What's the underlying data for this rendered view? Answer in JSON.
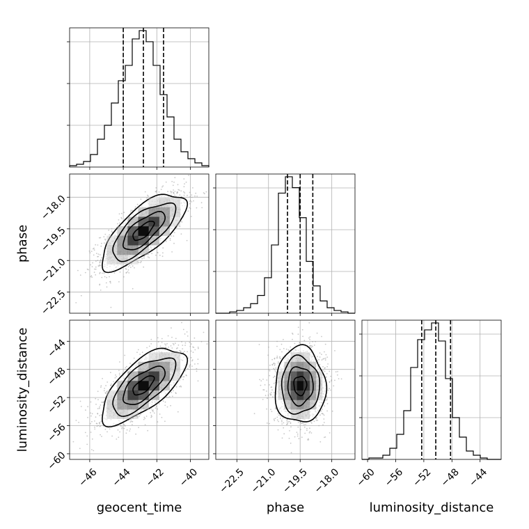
{
  "chart_data": {
    "type": "corner",
    "parameters": [
      "geocent_time",
      "phase",
      "luminosity_distance"
    ],
    "ranges": {
      "geocent_time": [
        -47.2,
        -38.9
      ],
      "phase": [
        -23.5,
        -16.9
      ],
      "luminosity_distance": [
        -60.8,
        -41.0
      ]
    },
    "ticks": {
      "geocent_time": {
        "values": [
          -46,
          -44,
          -42,
          -40
        ],
        "labels": [
          "−46",
          "−44",
          "−42",
          "−40"
        ]
      },
      "phase": {
        "values": [
          -22.5,
          -21.0,
          -19.5,
          -18.0
        ],
        "labels": [
          "−22.5",
          "−21.0",
          "−19.5",
          "−18.0"
        ]
      },
      "luminosity_distance": {
        "values": [
          -60,
          -56,
          -52,
          -48,
          -44
        ],
        "labels": [
          "−60",
          "−56",
          "−52",
          "−48",
          "−44"
        ]
      }
    },
    "grid": true,
    "histograms": {
      "geocent_time": {
        "bin_start": -47.2,
        "bin_width": 0.415,
        "counts": [
          1,
          2,
          4,
          9,
          20,
          30,
          46,
          62,
          73,
          92,
          98,
          90,
          73,
          52,
          36,
          20,
          11,
          6,
          3,
          1
        ],
        "quantiles": [
          -44.0,
          -42.8,
          -41.6
        ]
      },
      "phase": {
        "bin_start": -23.5,
        "bin_width": 0.33,
        "counts": [
          0,
          0,
          1,
          2,
          4,
          7,
          13,
          26,
          50,
          88,
          100,
          92,
          70,
          38,
          20,
          9,
          4,
          2,
          1,
          0
        ],
        "quantiles": [
          -20.1,
          -19.5,
          -18.9
        ]
      },
      "luminosity_distance": {
        "bin_start": -60.8,
        "bin_width": 0.99,
        "counts": [
          0,
          1,
          1,
          3,
          8,
          18,
          35,
          66,
          86,
          93,
          98,
          85,
          58,
          30,
          16,
          6,
          3,
          1,
          0,
          0
        ],
        "quantiles": [
          -52.3,
          -50.3,
          -48.2
        ]
      }
    },
    "densities": [
      {
        "x": "geocent_time",
        "y": "phase",
        "mean": [
          -42.8,
          -19.6
        ],
        "sd": [
          1.25,
          0.9
        ],
        "rho": 0.72
      },
      {
        "x": "geocent_time",
        "y": "luminosity_distance",
        "mean": [
          -42.8,
          -50.3
        ],
        "sd": [
          1.25,
          2.7
        ],
        "rho": 0.68
      },
      {
        "x": "phase",
        "y": "luminosity_distance",
        "mean": [
          -19.5,
          -50.3
        ],
        "sd": [
          0.6,
          2.7
        ],
        "rho": 0.0
      }
    ],
    "contour_levels": [
      0.118,
      0.393,
      0.675,
      0.865
    ]
  }
}
